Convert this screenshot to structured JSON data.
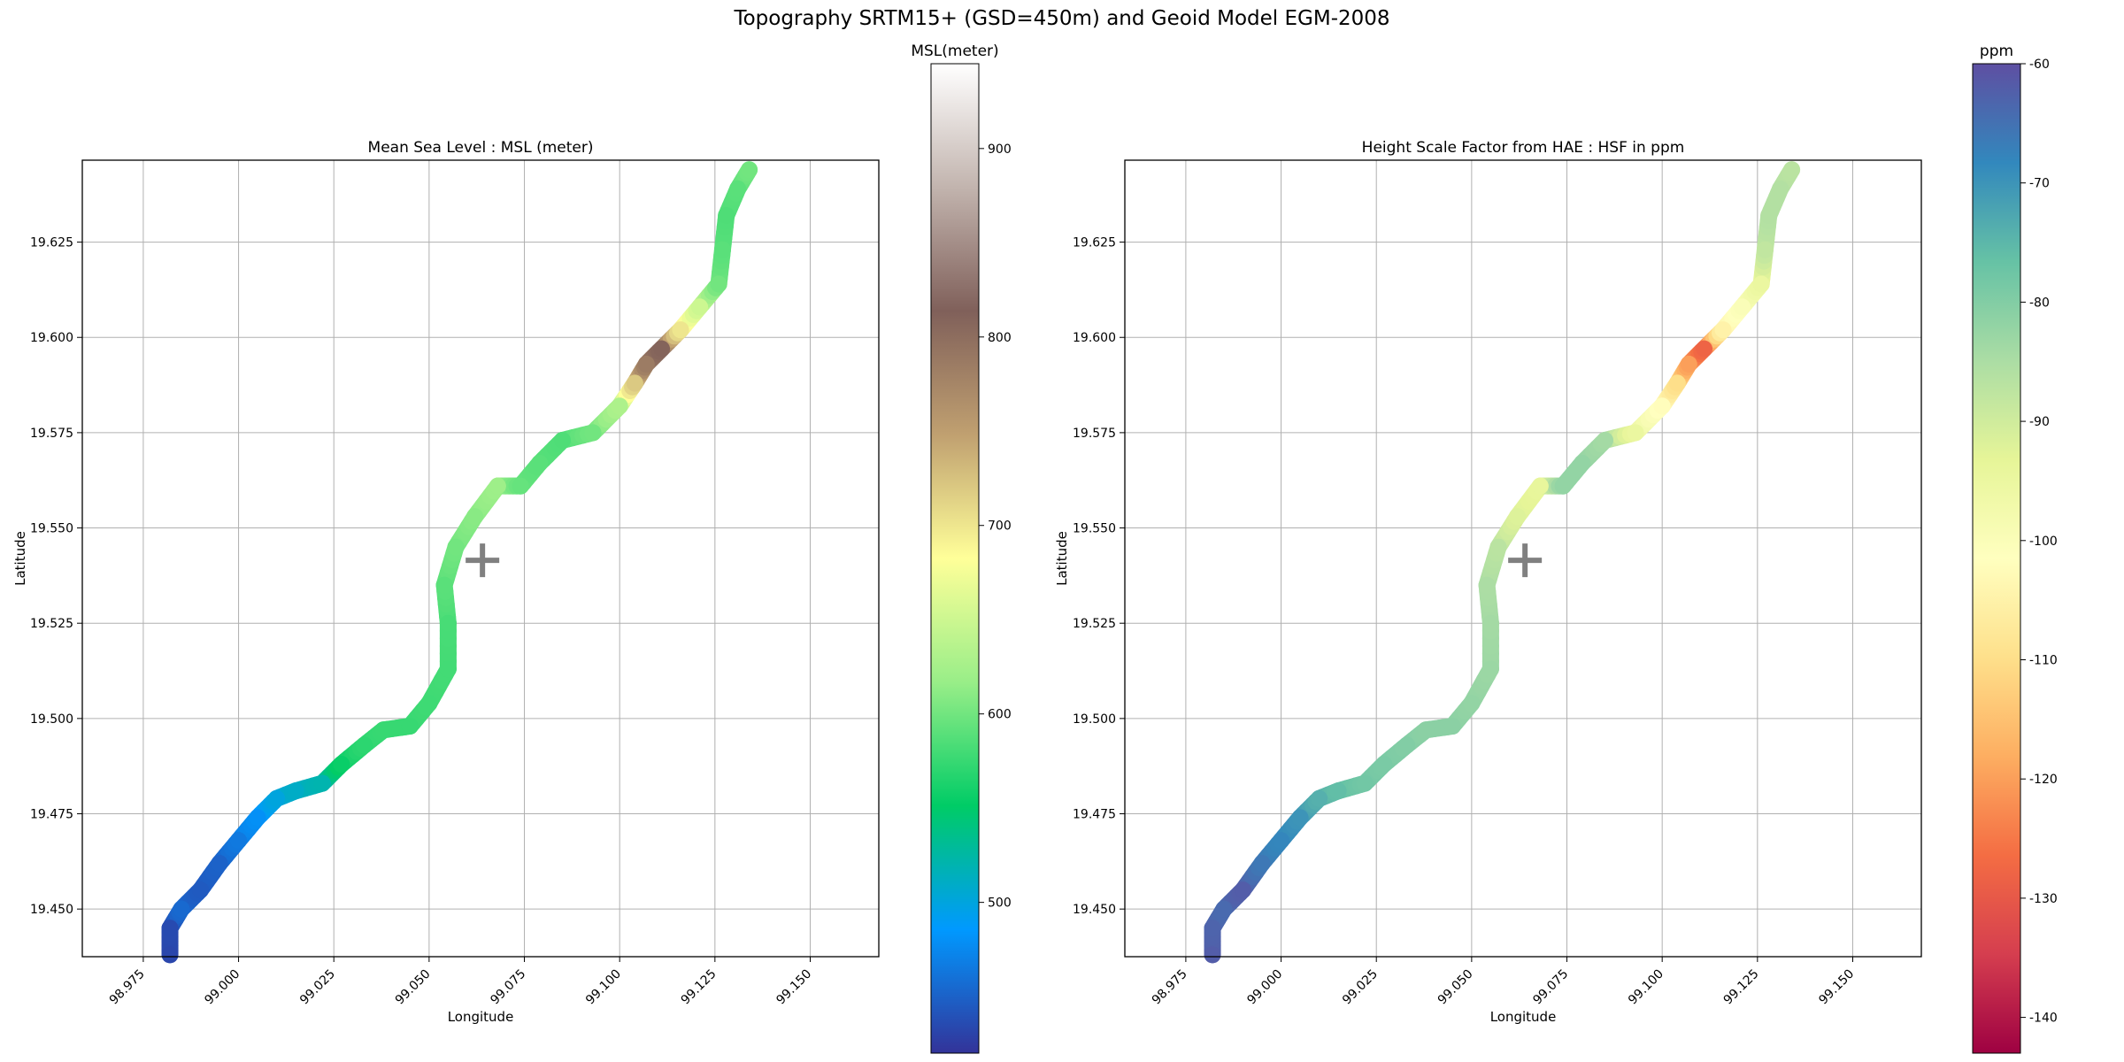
{
  "figure": {
    "title": "Topography SRTM15+ (GSD=450m) and Geoid Model EGM-2008"
  },
  "chart_data": [
    {
      "type": "scatter",
      "title": "Mean Sea Level : MSL (meter)",
      "xlabel": "Longitude",
      "ylabel": "Latitude",
      "xlim": [
        98.959,
        99.168
      ],
      "ylim": [
        19.4375,
        19.6465
      ],
      "xticks": [
        "98.975",
        "99.000",
        "99.025",
        "99.050",
        "99.075",
        "99.100",
        "99.125",
        "99.150"
      ],
      "yticks": [
        "19.450",
        "19.475",
        "19.500",
        "19.525",
        "19.550",
        "19.575",
        "19.600",
        "19.625"
      ],
      "grid": true,
      "marker": {
        "symbol": "+",
        "lon": 99.064,
        "lat": 19.5415,
        "color": "#808080"
      },
      "colorbar": {
        "title": "MSL(meter)",
        "range": [
          420,
          945
        ],
        "ticks": [
          "500",
          "600",
          "700",
          "800",
          "900"
        ],
        "colormap": "terrain",
        "stops": [
          "#333399",
          "#0099ff",
          "#00cc66",
          "#99ee88",
          "#ffff99",
          "#c0a070",
          "#80605a",
          "#c2b4ae",
          "#ffffff"
        ]
      },
      "points": [
        [
          98.982,
          19.438,
          432
        ],
        [
          98.982,
          19.445,
          435
        ],
        [
          98.985,
          19.45,
          455
        ],
        [
          98.99,
          19.455,
          445
        ],
        [
          98.995,
          19.462,
          450
        ],
        [
          99.0,
          19.468,
          465
        ],
        [
          99.005,
          19.474,
          480
        ],
        [
          99.01,
          19.479,
          500
        ],
        [
          99.015,
          19.481,
          510
        ],
        [
          99.022,
          19.483,
          520
        ],
        [
          99.027,
          19.488,
          555
        ],
        [
          99.033,
          19.493,
          570
        ],
        [
          99.038,
          19.497,
          575
        ],
        [
          99.045,
          19.498,
          575
        ],
        [
          99.05,
          19.504,
          578
        ],
        [
          99.055,
          19.513,
          580
        ],
        [
          99.055,
          19.525,
          582
        ],
        [
          99.054,
          19.535,
          590
        ],
        [
          99.057,
          19.545,
          600
        ],
        [
          99.062,
          19.553,
          610
        ],
        [
          99.068,
          19.561,
          620
        ],
        [
          99.074,
          19.561,
          595
        ],
        [
          99.079,
          19.567,
          590
        ],
        [
          99.085,
          19.573,
          585
        ],
        [
          99.093,
          19.575,
          600
        ],
        [
          99.1,
          19.582,
          630
        ],
        [
          99.104,
          19.588,
          720
        ],
        [
          99.107,
          19.593,
          785
        ],
        [
          99.111,
          19.597,
          810
        ],
        [
          99.116,
          19.602,
          700
        ],
        [
          99.121,
          19.608,
          650
        ],
        [
          99.126,
          19.614,
          600
        ],
        [
          99.127,
          19.623,
          590
        ],
        [
          99.128,
          19.632,
          585
        ],
        [
          99.131,
          19.639,
          590
        ],
        [
          99.134,
          19.644,
          600
        ]
      ]
    },
    {
      "type": "scatter",
      "title": "Height Scale Factor from HAE : HSF in ppm",
      "xlabel": "Longitude",
      "ylabel": "Latitude",
      "xlim": [
        98.959,
        99.168
      ],
      "ylim": [
        19.4375,
        19.6465
      ],
      "xticks": [
        "98.975",
        "99.000",
        "99.025",
        "99.050",
        "99.075",
        "99.100",
        "99.125",
        "99.150"
      ],
      "yticks": [
        "19.450",
        "19.475",
        "19.500",
        "19.525",
        "19.550",
        "19.575",
        "19.600",
        "19.625"
      ],
      "grid": true,
      "marker": {
        "symbol": "+",
        "lon": 99.064,
        "lat": 19.5415,
        "color": "#808080"
      },
      "colorbar": {
        "title": "ppm",
        "range": [
          -143,
          -60
        ],
        "ticks": [
          "-140",
          "-130",
          "-120",
          "-110",
          "-100",
          "-90",
          "-80",
          "-70",
          "-60"
        ],
        "colormap": "Spectral",
        "stops": [
          "#9e0142",
          "#d53e4f",
          "#f46d43",
          "#fdae61",
          "#fee08b",
          "#ffffbf",
          "#e6f598",
          "#abdda4",
          "#66c2a5",
          "#3288bd",
          "#5e4fa2"
        ]
      },
      "points": [
        [
          98.982,
          19.438,
          -62
        ],
        [
          98.982,
          19.445,
          -63
        ],
        [
          98.985,
          19.45,
          -64
        ],
        [
          98.99,
          19.455,
          -62
        ],
        [
          98.995,
          19.462,
          -66
        ],
        [
          99.0,
          19.468,
          -68
        ],
        [
          99.005,
          19.474,
          -70
        ],
        [
          99.01,
          19.479,
          -74
        ],
        [
          99.015,
          19.481,
          -76
        ],
        [
          99.022,
          19.483,
          -78
        ],
        [
          99.027,
          19.488,
          -79
        ],
        [
          99.033,
          19.493,
          -80
        ],
        [
          99.038,
          19.497,
          -81
        ],
        [
          99.045,
          19.498,
          -81
        ],
        [
          99.05,
          19.504,
          -82
        ],
        [
          99.055,
          19.513,
          -83
        ],
        [
          99.055,
          19.525,
          -84
        ],
        [
          99.054,
          19.535,
          -85
        ],
        [
          99.057,
          19.545,
          -87
        ],
        [
          99.062,
          19.553,
          -92
        ],
        [
          99.068,
          19.561,
          -94
        ],
        [
          99.074,
          19.561,
          -82
        ],
        [
          99.079,
          19.567,
          -82
        ],
        [
          99.085,
          19.573,
          -84
        ],
        [
          99.093,
          19.575,
          -95
        ],
        [
          99.1,
          19.582,
          -102
        ],
        [
          99.104,
          19.588,
          -110
        ],
        [
          99.107,
          19.593,
          -120
        ],
        [
          99.111,
          19.597,
          -128
        ],
        [
          99.116,
          19.602,
          -105
        ],
        [
          99.121,
          19.608,
          -100
        ],
        [
          99.126,
          19.614,
          -95
        ],
        [
          99.127,
          19.623,
          -88
        ],
        [
          99.128,
          19.632,
          -86
        ],
        [
          99.131,
          19.639,
          -86
        ],
        [
          99.134,
          19.644,
          -87
        ]
      ]
    }
  ]
}
